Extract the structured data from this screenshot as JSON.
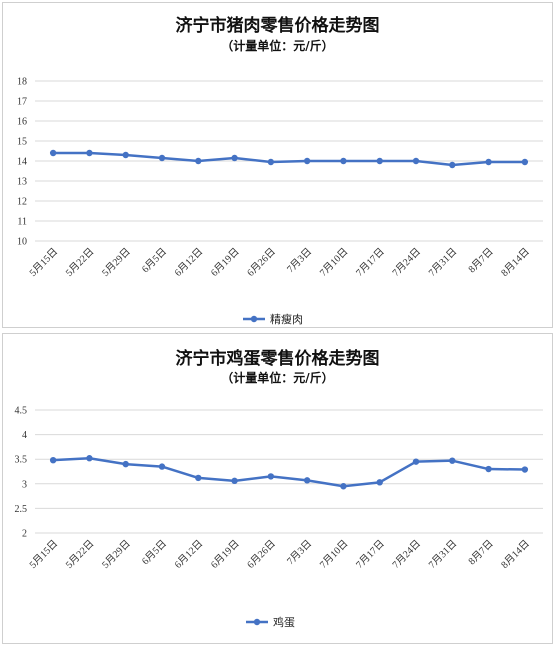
{
  "chart_data": [
    {
      "type": "line",
      "title": "济宁市猪肉零售价格走势图",
      "subtitle": "（计量单位：元/斤）",
      "categories": [
        "5月15日",
        "5月22日",
        "5月29日",
        "6月5日",
        "6月12日",
        "6月19日",
        "6月26日",
        "7月3日",
        "7月10日",
        "7月17日",
        "7月24日",
        "7月31日",
        "8月7日",
        "8月14日"
      ],
      "series": [
        {
          "name": "精瘦肉",
          "values": [
            14.4,
            14.4,
            14.3,
            14.15,
            14.0,
            14.15,
            13.95,
            14.0,
            14.0,
            14.0,
            14.0,
            13.8,
            13.95,
            13.95
          ]
        }
      ],
      "ylim": [
        10,
        18
      ],
      "yticks": [
        "10",
        "11",
        "12",
        "13",
        "14",
        "15",
        "16",
        "17",
        "18"
      ],
      "grid": true,
      "legend": "bottom",
      "color": "#4472C4"
    },
    {
      "type": "line",
      "title": "济宁市鸡蛋零售价格走势图",
      "subtitle": "（计量单位：元/斤）",
      "categories": [
        "5月15日",
        "5月22日",
        "5月29日",
        "6月5日",
        "6月12日",
        "6月19日",
        "6月26日",
        "7月3日",
        "7月10日",
        "7月17日",
        "7月24日",
        "7月31日",
        "8月7日",
        "8月14日"
      ],
      "series": [
        {
          "name": "鸡蛋",
          "values": [
            3.48,
            3.52,
            3.4,
            3.35,
            3.12,
            3.06,
            3.15,
            3.07,
            2.95,
            3.03,
            3.45,
            3.47,
            3.3,
            3.29
          ]
        }
      ],
      "ylim": [
        2,
        4.5
      ],
      "yticks": [
        "2",
        "2.5",
        "3",
        "3.5",
        "4",
        "4.5"
      ],
      "grid": true,
      "legend": "bottom",
      "color": "#4472C4"
    }
  ]
}
